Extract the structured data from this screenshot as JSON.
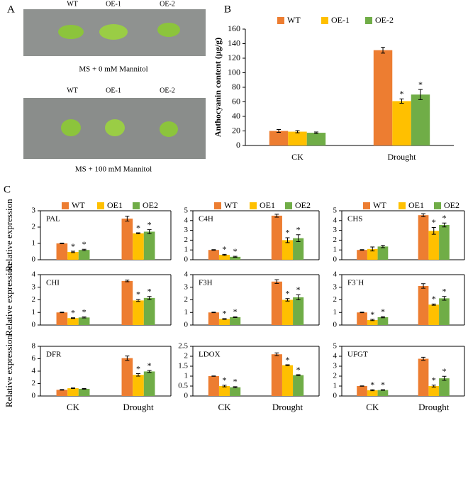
{
  "panel_labels": [
    "A",
    "B",
    "C"
  ],
  "photo_panel": {
    "rows": [
      {
        "labels": [
          "WT",
          "OE-1",
          "OE-2"
        ],
        "caption": "MS + 0 mM Mannitol"
      },
      {
        "labels": [
          "WT",
          "OE-1",
          "OE-2"
        ],
        "caption": "MS + 100 mM Mannitol"
      }
    ]
  },
  "chart_data": [
    {
      "type": "bar",
      "ylabel": "Anthocyanin content (μg/g)",
      "categories": [
        "CK",
        "Drought"
      ],
      "ylim": [
        0,
        160
      ],
      "yticks": [
        0,
        20,
        40,
        60,
        80,
        100,
        120,
        140,
        160
      ],
      "legend": "top",
      "series": [
        {
          "name": "WT",
          "color": "#ED7D31",
          "values": [
            20,
            131
          ],
          "errors": [
            2,
            4
          ],
          "annotations": [
            null,
            null
          ]
        },
        {
          "name": "OE-1",
          "color": "#FFC000",
          "values": [
            19,
            61
          ],
          "errors": [
            1.5,
            3
          ],
          "annotations": [
            null,
            "*"
          ]
        },
        {
          "name": "OE-2",
          "color": "#70AD47",
          "values": [
            17.5,
            70
          ],
          "errors": [
            1,
            7
          ],
          "annotations": [
            null,
            "*"
          ]
        }
      ]
    },
    {
      "type": "bar",
      "title": "PAL",
      "ylabel": "Relative expression",
      "frame": true,
      "legend": "top",
      "categories": [
        null,
        null
      ],
      "ylim": [
        0,
        3
      ],
      "yticks": [
        0,
        1,
        2,
        3
      ],
      "series": [
        {
          "name": "WT",
          "color": "#ED7D31",
          "values": [
            1.0,
            2.52
          ],
          "errors": [
            0.02,
            0.15
          ],
          "annotations": [
            null,
            null
          ]
        },
        {
          "name": "OE1",
          "color": "#FFC000",
          "values": [
            0.48,
            1.62
          ],
          "errors": [
            0.04,
            0.03
          ],
          "annotations": [
            "*",
            "*"
          ]
        },
        {
          "name": "OE2",
          "color": "#70AD47",
          "values": [
            0.6,
            1.72
          ],
          "errors": [
            0.04,
            0.12
          ],
          "annotations": [
            "*",
            "*"
          ]
        }
      ]
    },
    {
      "type": "bar",
      "title": "C4H",
      "frame": true,
      "legend": "top",
      "categories": [
        null,
        null
      ],
      "ylim": [
        0,
        5
      ],
      "yticks": [
        0,
        1,
        2,
        3,
        4,
        5
      ],
      "series": [
        {
          "name": "WT",
          "color": "#ED7D31",
          "values": [
            1.0,
            4.5
          ],
          "errors": [
            0.03,
            0.15
          ],
          "annotations": [
            null,
            null
          ]
        },
        {
          "name": "OE1",
          "color": "#FFC000",
          "values": [
            0.5,
            2.0
          ],
          "errors": [
            0.05,
            0.25
          ],
          "annotations": [
            "*",
            "*"
          ]
        },
        {
          "name": "OE2",
          "color": "#70AD47",
          "values": [
            0.3,
            2.2
          ],
          "errors": [
            0.05,
            0.35
          ],
          "annotations": [
            "*",
            "*"
          ]
        }
      ]
    },
    {
      "type": "bar",
      "title": "CHS",
      "frame": true,
      "legend": "top",
      "categories": [
        null,
        null
      ],
      "ylim": [
        0,
        5
      ],
      "yticks": [
        0,
        1,
        2,
        3,
        4,
        5
      ],
      "series": [
        {
          "name": "WT",
          "color": "#ED7D31",
          "values": [
            1.0,
            4.55
          ],
          "errors": [
            0.03,
            0.15
          ],
          "annotations": [
            null,
            null
          ]
        },
        {
          "name": "OE1",
          "color": "#FFC000",
          "values": [
            1.1,
            2.95
          ],
          "errors": [
            0.2,
            0.35
          ],
          "annotations": [
            null,
            "*"
          ]
        },
        {
          "name": "OE2",
          "color": "#70AD47",
          "values": [
            1.35,
            3.55
          ],
          "errors": [
            0.12,
            0.2
          ],
          "annotations": [
            null,
            "*"
          ]
        }
      ]
    },
    {
      "type": "bar",
      "title": "CHI",
      "ylabel": "Relative expression",
      "frame": true,
      "categories": [
        null,
        null
      ],
      "ylim": [
        0,
        4
      ],
      "yticks": [
        0,
        1,
        2,
        3,
        4
      ],
      "series": [
        {
          "color": "#ED7D31",
          "values": [
            1.0,
            3.5
          ],
          "errors": [
            0.02,
            0.06
          ],
          "annotations": [
            null,
            null
          ]
        },
        {
          "color": "#FFC000",
          "values": [
            0.55,
            1.95
          ],
          "errors": [
            0.03,
            0.08
          ],
          "annotations": [
            "*",
            "*"
          ]
        },
        {
          "color": "#70AD47",
          "values": [
            0.6,
            2.15
          ],
          "errors": [
            0.04,
            0.12
          ],
          "annotations": [
            "*",
            "*"
          ]
        }
      ]
    },
    {
      "type": "bar",
      "title": "F3H",
      "frame": true,
      "categories": [
        null,
        null
      ],
      "ylim": [
        0,
        4
      ],
      "yticks": [
        0,
        1,
        2,
        3,
        4
      ],
      "series": [
        {
          "color": "#ED7D31",
          "values": [
            1.0,
            3.45
          ],
          "errors": [
            0.02,
            0.15
          ],
          "annotations": [
            null,
            null
          ]
        },
        {
          "color": "#FFC000",
          "values": [
            0.48,
            2.0
          ],
          "errors": [
            0.03,
            0.1
          ],
          "annotations": [
            "*",
            "*"
          ]
        },
        {
          "color": "#70AD47",
          "values": [
            0.62,
            2.2
          ],
          "errors": [
            0.03,
            0.2
          ],
          "annotations": [
            "*",
            "*"
          ]
        }
      ]
    },
    {
      "type": "bar",
      "title": "F3`H",
      "frame": true,
      "categories": [
        null,
        null
      ],
      "ylim": [
        0,
        4
      ],
      "yticks": [
        0,
        1,
        2,
        3,
        4
      ],
      "series": [
        {
          "color": "#ED7D31",
          "values": [
            1.0,
            3.1
          ],
          "errors": [
            0.02,
            0.18
          ],
          "annotations": [
            null,
            null
          ]
        },
        {
          "color": "#FFC000",
          "values": [
            0.4,
            1.62
          ],
          "errors": [
            0.05,
            0.05
          ],
          "annotations": [
            "*",
            "*"
          ]
        },
        {
          "color": "#70AD47",
          "values": [
            0.62,
            2.12
          ],
          "errors": [
            0.04,
            0.15
          ],
          "annotations": [
            "*",
            "*"
          ]
        }
      ]
    },
    {
      "type": "bar",
      "title": "DFR",
      "ylabel": "Relative expression",
      "frame": true,
      "categories": [
        "CK",
        "Drought"
      ],
      "ylim": [
        0,
        8
      ],
      "yticks": [
        0,
        2,
        4,
        6,
        8
      ],
      "series": [
        {
          "color": "#ED7D31",
          "values": [
            1.0,
            6.1
          ],
          "errors": [
            0.05,
            0.35
          ],
          "annotations": [
            null,
            null
          ]
        },
        {
          "color": "#FFC000",
          "values": [
            1.25,
            3.4
          ],
          "errors": [
            0.05,
            0.2
          ],
          "annotations": [
            null,
            "*"
          ]
        },
        {
          "color": "#70AD47",
          "values": [
            1.15,
            3.95
          ],
          "errors": [
            0.05,
            0.15
          ],
          "annotations": [
            null,
            "*"
          ]
        }
      ]
    },
    {
      "type": "bar",
      "title": "LDOX",
      "frame": true,
      "categories": [
        "CK",
        "Drought"
      ],
      "ylim": [
        0,
        2.5
      ],
      "yticks": [
        0,
        0.5,
        1,
        1.5,
        2,
        2.5
      ],
      "series": [
        {
          "color": "#ED7D31",
          "values": [
            1.0,
            2.1
          ],
          "errors": [
            0.01,
            0.07
          ],
          "annotations": [
            null,
            null
          ]
        },
        {
          "color": "#FFC000",
          "values": [
            0.5,
            1.55
          ],
          "errors": [
            0.04,
            0.02
          ],
          "annotations": [
            "*",
            "*"
          ]
        },
        {
          "color": "#70AD47",
          "values": [
            0.44,
            1.05
          ],
          "errors": [
            0.03,
            0.02
          ],
          "annotations": [
            "*",
            "*"
          ]
        }
      ]
    },
    {
      "type": "bar",
      "title": "UFGT",
      "frame": true,
      "categories": [
        "CK",
        "Drought"
      ],
      "ylim": [
        0,
        5
      ],
      "yticks": [
        0,
        1,
        2,
        3,
        4,
        5
      ],
      "series": [
        {
          "color": "#ED7D31",
          "values": [
            1.0,
            3.75
          ],
          "errors": [
            0.02,
            0.15
          ],
          "annotations": [
            null,
            null
          ]
        },
        {
          "color": "#FFC000",
          "values": [
            0.58,
            1.0
          ],
          "errors": [
            0.05,
            0.1
          ],
          "annotations": [
            "*",
            "*"
          ]
        },
        {
          "color": "#70AD47",
          "values": [
            0.6,
            1.78
          ],
          "errors": [
            0.03,
            0.2
          ],
          "annotations": [
            "*",
            "*"
          ]
        }
      ]
    }
  ]
}
